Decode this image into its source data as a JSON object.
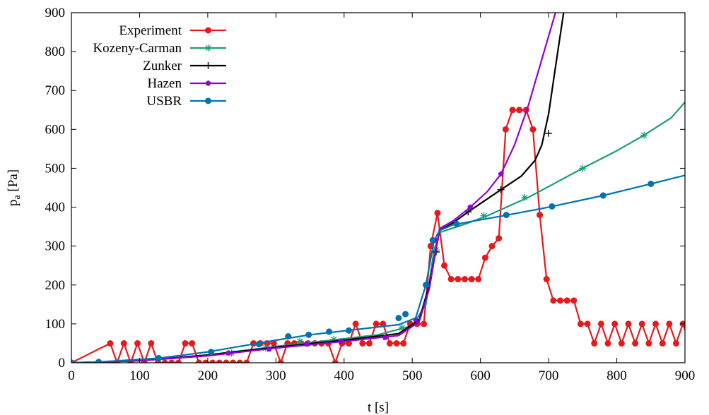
{
  "chart_data": {
    "type": "line",
    "title": "",
    "xlabel": "t [s]",
    "ylabel": "p",
    "ylabel_sub": "a",
    "ylabel_unit": " [Pa]",
    "xlim": [
      0,
      900
    ],
    "ylim": [
      0,
      900
    ],
    "xticks": [
      0,
      100,
      200,
      300,
      400,
      500,
      600,
      700,
      800,
      900
    ],
    "yticks": [
      0,
      100,
      200,
      300,
      400,
      500,
      600,
      700,
      800,
      900
    ],
    "grid": false,
    "legend_position": "top-left",
    "series": [
      {
        "name": "Experiment",
        "color": "#e41a1c",
        "marker": "circle",
        "points": [
          [
            0,
            0
          ],
          [
            57,
            50
          ],
          [
            67,
            0
          ],
          [
            77,
            50
          ],
          [
            87,
            0
          ],
          [
            97,
            50
          ],
          [
            107,
            0
          ],
          [
            117,
            50
          ],
          [
            127,
            0
          ],
          [
            137,
            0
          ],
          [
            147,
            0
          ],
          [
            157,
            0
          ],
          [
            167,
            50
          ],
          [
            177,
            50
          ],
          [
            187,
            0
          ],
          [
            197,
            0
          ],
          [
            207,
            0
          ],
          [
            217,
            0
          ],
          [
            227,
            0
          ],
          [
            237,
            0
          ],
          [
            247,
            0
          ],
          [
            257,
            0
          ],
          [
            267,
            50
          ],
          [
            277,
            50
          ],
          [
            287,
            50
          ],
          [
            297,
            50
          ],
          [
            307,
            0
          ],
          [
            317,
            50
          ],
          [
            327,
            50
          ],
          [
            337,
            50
          ],
          [
            347,
            50
          ],
          [
            357,
            50
          ],
          [
            367,
            50
          ],
          [
            377,
            50
          ],
          [
            387,
            0
          ],
          [
            397,
            50
          ],
          [
            407,
            50
          ],
          [
            417,
            100
          ],
          [
            427,
            50
          ],
          [
            437,
            50
          ],
          [
            447,
            100
          ],
          [
            457,
            100
          ],
          [
            467,
            50
          ],
          [
            477,
            50
          ],
          [
            487,
            50
          ],
          [
            497,
            100
          ],
          [
            507,
            100
          ],
          [
            517,
            100
          ],
          [
            527,
            300
          ],
          [
            537,
            385
          ],
          [
            547,
            250
          ],
          [
            557,
            215
          ],
          [
            567,
            215
          ],
          [
            577,
            215
          ],
          [
            587,
            215
          ],
          [
            597,
            215
          ],
          [
            607,
            270
          ],
          [
            617,
            300
          ],
          [
            627,
            320
          ],
          [
            637,
            600
          ],
          [
            647,
            650
          ],
          [
            657,
            650
          ],
          [
            667,
            650
          ],
          [
            677,
            600
          ],
          [
            687,
            380
          ],
          [
            697,
            215
          ],
          [
            707,
            160
          ],
          [
            717,
            160
          ],
          [
            727,
            160
          ],
          [
            737,
            160
          ],
          [
            747,
            100
          ],
          [
            757,
            100
          ],
          [
            767,
            50
          ],
          [
            777,
            100
          ],
          [
            787,
            50
          ],
          [
            797,
            100
          ],
          [
            807,
            50
          ],
          [
            817,
            100
          ],
          [
            827,
            50
          ],
          [
            837,
            100
          ],
          [
            847,
            50
          ],
          [
            857,
            100
          ],
          [
            867,
            50
          ],
          [
            877,
            100
          ],
          [
            887,
            50
          ],
          [
            897,
            100
          ],
          [
            907,
            50
          ]
        ]
      },
      {
        "name": "Kozeny-Carman",
        "color": "#1a9e77",
        "marker": "asterisk",
        "points": [
          [
            0,
            0
          ],
          [
            100,
            5
          ],
          [
            200,
            20
          ],
          [
            300,
            42
          ],
          [
            400,
            62
          ],
          [
            450,
            72
          ],
          [
            500,
            95
          ],
          [
            520,
            150
          ],
          [
            532,
            290
          ],
          [
            540,
            335
          ],
          [
            580,
            358
          ],
          [
            610,
            378
          ],
          [
            670,
            425
          ],
          [
            750,
            500
          ],
          [
            800,
            545
          ],
          [
            840,
            585
          ],
          [
            880,
            630
          ],
          [
            910,
            690
          ],
          [
            935,
            760
          ],
          [
            948,
            820
          ]
        ],
        "markers": [
          [
            0,
            0
          ],
          [
            235,
            25
          ],
          [
            285,
            38
          ],
          [
            335,
            55
          ],
          [
            385,
            60
          ],
          [
            485,
            90
          ],
          [
            535,
            290
          ],
          [
            605,
            378
          ],
          [
            665,
            425
          ],
          [
            750,
            500
          ],
          [
            840,
            585
          ]
        ]
      },
      {
        "name": "Zunker",
        "color": "#000000",
        "marker": "plus",
        "points": [
          [
            0,
            0
          ],
          [
            100,
            5
          ],
          [
            200,
            20
          ],
          [
            300,
            40
          ],
          [
            400,
            58
          ],
          [
            480,
            75
          ],
          [
            510,
            110
          ],
          [
            525,
            200
          ],
          [
            540,
            340
          ],
          [
            560,
            360
          ],
          [
            582,
            388
          ],
          [
            630,
            445
          ],
          [
            660,
            480
          ],
          [
            680,
            520
          ],
          [
            690,
            560
          ],
          [
            700,
            640
          ],
          [
            710,
            760
          ],
          [
            722,
            900
          ]
        ],
        "markers": [
          [
            0,
            0
          ],
          [
            535,
            285
          ],
          [
            582,
            388
          ],
          [
            630,
            445
          ],
          [
            700,
            590
          ]
        ]
      },
      {
        "name": "Hazen",
        "color": "#9400d3",
        "marker": "pentagon",
        "points": [
          [
            0,
            0
          ],
          [
            100,
            5
          ],
          [
            200,
            18
          ],
          [
            300,
            38
          ],
          [
            400,
            55
          ],
          [
            480,
            70
          ],
          [
            510,
            105
          ],
          [
            525,
            190
          ],
          [
            540,
            345
          ],
          [
            560,
            365
          ],
          [
            585,
            400
          ],
          [
            610,
            440
          ],
          [
            630,
            485
          ],
          [
            650,
            560
          ],
          [
            670,
            660
          ],
          [
            690,
            780
          ],
          [
            710,
            900
          ]
        ],
        "markers": [
          [
            0,
            0
          ],
          [
            230,
            25
          ],
          [
            290,
            35
          ],
          [
            345,
            48
          ],
          [
            395,
            55
          ],
          [
            460,
            65
          ],
          [
            505,
            110
          ],
          [
            535,
            315
          ],
          [
            585,
            400
          ],
          [
            630,
            485
          ]
        ]
      },
      {
        "name": "USBR",
        "color": "#0072b2",
        "marker": "circle",
        "points": [
          [
            0,
            0
          ],
          [
            40,
            2
          ],
          [
            130,
            12
          ],
          [
            200,
            28
          ],
          [
            300,
            58
          ],
          [
            350,
            72
          ],
          [
            400,
            82
          ],
          [
            480,
            98
          ],
          [
            505,
            115
          ],
          [
            520,
            200
          ],
          [
            532,
            315
          ],
          [
            540,
            340
          ],
          [
            560,
            355
          ],
          [
            640,
            380
          ],
          [
            700,
            400
          ],
          [
            780,
            430
          ],
          [
            850,
            460
          ],
          [
            900,
            482
          ]
        ],
        "markers": [
          [
            0,
            0
          ],
          [
            40,
            2
          ],
          [
            128,
            12
          ],
          [
            205,
            28
          ],
          [
            275,
            48
          ],
          [
            318,
            68
          ],
          [
            348,
            72
          ],
          [
            378,
            80
          ],
          [
            407,
            83
          ],
          [
            480,
            115
          ],
          [
            490,
            125
          ],
          [
            520,
            200
          ],
          [
            530,
            315
          ],
          [
            565,
            357
          ],
          [
            638,
            380
          ],
          [
            705,
            402
          ],
          [
            780,
            430
          ],
          [
            850,
            460
          ]
        ]
      }
    ]
  }
}
